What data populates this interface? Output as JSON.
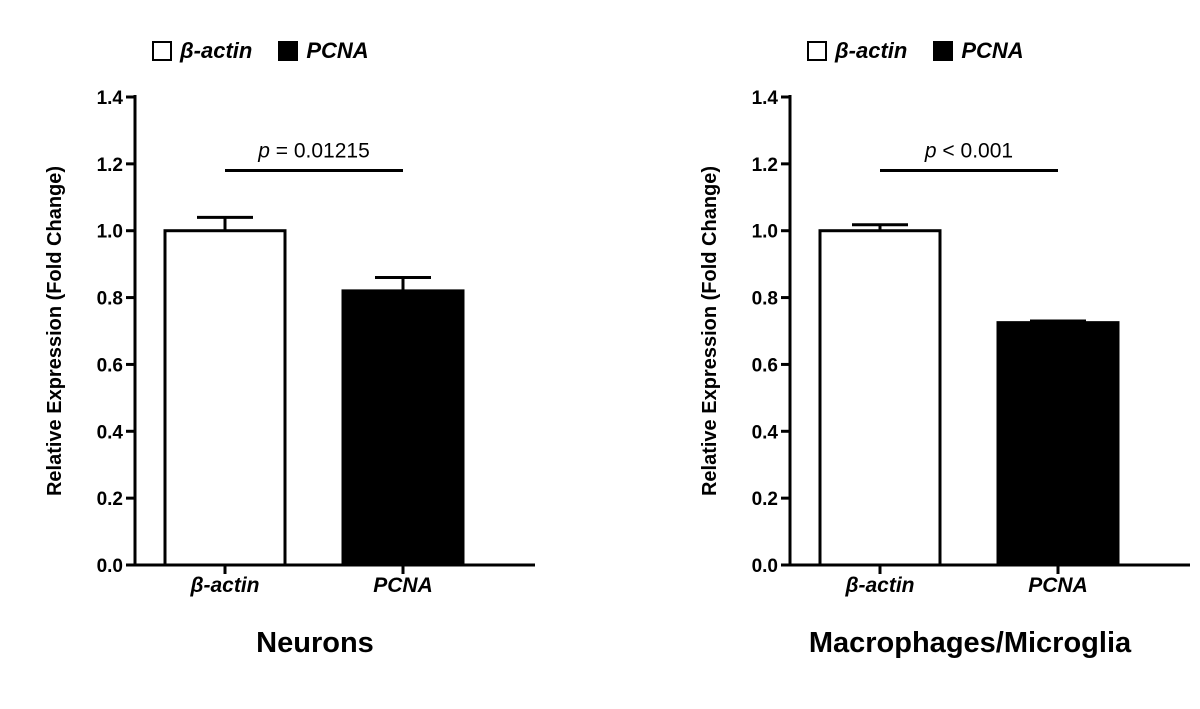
{
  "legend": {
    "items": [
      {
        "label": "β-actin",
        "fill": "#ffffff"
      },
      {
        "label": "PCNA",
        "fill": "#000000"
      }
    ]
  },
  "chart_data": [
    {
      "type": "bar",
      "title": "Neurons",
      "xlabel": "",
      "ylabel": "Relative Expression (Fold Change)",
      "categories": [
        "β-actin",
        "PCNA"
      ],
      "values": [
        1.0,
        0.82
      ],
      "error": [
        0.04,
        0.04
      ],
      "colors": [
        "#ffffff",
        "#000000"
      ],
      "ylim": [
        0,
        1.4
      ],
      "yticks": [
        "0.0",
        "0.2",
        "0.4",
        "0.6",
        "0.8",
        "1.0",
        "1.2",
        "1.4"
      ],
      "grid": false,
      "legend_position": "top-left",
      "annotation": {
        "prefix": "p",
        "text": " = 0.01215",
        "y": 1.18
      }
    },
    {
      "type": "bar",
      "title": "Macrophages/Microglia",
      "xlabel": "",
      "ylabel": "Relative Expression (Fold Change)",
      "categories": [
        "β-actin",
        "PCNA"
      ],
      "values": [
        1.0,
        0.725
      ],
      "error": [
        0.018,
        0.005
      ],
      "colors": [
        "#ffffff",
        "#000000"
      ],
      "ylim": [
        0,
        1.4
      ],
      "yticks": [
        "0.0",
        "0.2",
        "0.4",
        "0.6",
        "0.8",
        "1.0",
        "1.2",
        "1.4"
      ],
      "grid": false,
      "legend_position": "top-left",
      "annotation": {
        "prefix": "p",
        "text": " < 0.001",
        "y": 1.18
      }
    }
  ]
}
